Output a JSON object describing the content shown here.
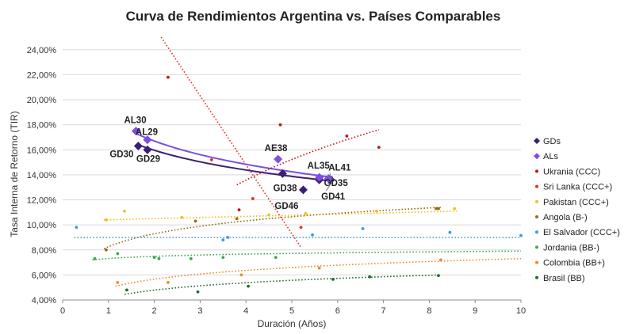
{
  "chart_data": {
    "type": "scatter",
    "title": "Curva de Rendimientos Argentina vs. Países Comparables",
    "xlabel": "Duración (Años)",
    "ylabel": "Tasa Interna de Retorno (TIR)",
    "xlim": [
      0,
      10
    ],
    "ylim": [
      4,
      25
    ],
    "x_ticks": [
      "0",
      "1",
      "2",
      "3",
      "4",
      "5",
      "6",
      "7",
      "8",
      "9",
      "10"
    ],
    "y_ticks": [
      "4,00%",
      "6,00%",
      "8,00%",
      "10,00%",
      "12,00%",
      "14,00%",
      "16,00%",
      "18,00%",
      "20,00%",
      "22,00%",
      "24,00%"
    ],
    "grid": "horizontal",
    "legend_position": "right",
    "series": [
      {
        "name": "GDs",
        "color": "#3b1f73",
        "marker": "diamond",
        "points": [
          {
            "label": "GD30",
            "x": 1.65,
            "y": 16.3
          },
          {
            "label": "GD29",
            "x": 1.85,
            "y": 16.0
          },
          {
            "label": "GD38",
            "x": 4.8,
            "y": 14.1
          },
          {
            "label": "GD46",
            "x": 5.25,
            "y": 12.8
          },
          {
            "label": "GD35",
            "x": 5.6,
            "y": 13.6
          },
          {
            "label": "GD41",
            "x": 5.85,
            "y": 13.6
          }
        ],
        "trend": {
          "type": "log",
          "x_from": 1.65,
          "x_to": 5.9,
          "y_from": 16.4,
          "y_to": 13.5
        }
      },
      {
        "name": "ALs",
        "color": "#7b4fe0",
        "marker": "diamond",
        "points": [
          {
            "label": "AL30",
            "x": 1.6,
            "y": 17.5
          },
          {
            "label": "AL29",
            "x": 1.85,
            "y": 16.8
          },
          {
            "label": "AE38",
            "x": 4.7,
            "y": 15.25
          },
          {
            "label": "AL35",
            "x": 5.6,
            "y": 13.8
          },
          {
            "label": "AL41",
            "x": 5.8,
            "y": 13.7
          }
        ],
        "trend": {
          "type": "log",
          "x_from": 1.6,
          "x_to": 5.9,
          "y_from": 17.3,
          "y_to": 13.8
        }
      },
      {
        "name": "Ukrania (CCC)",
        "color": "#c0141c",
        "points": [
          [
            2.3,
            21.8
          ],
          [
            3.85,
            11.2
          ],
          [
            4.75,
            18.0
          ],
          [
            6.2,
            17.1
          ],
          [
            6.9,
            16.2
          ]
        ],
        "trend": {
          "type": "log",
          "x_from": 3.8,
          "x_to": 6.9,
          "y_from": 13.2,
          "y_to": 17.6
        }
      },
      {
        "name": "Sri Lanka (CCC+)",
        "color": "#e53020",
        "points": [
          [
            3.25,
            15.2
          ],
          [
            4.15,
            12.1
          ],
          [
            5.2,
            9.8
          ]
        ],
        "trend": {
          "type": "linear",
          "x_from": 2.15,
          "x_to": 5.2,
          "y_from": 25.0,
          "y_to": 8.2
        }
      },
      {
        "name": "Pakistan (CCC+)",
        "color": "#f0c020",
        "points": [
          [
            0.95,
            10.4
          ],
          [
            1.35,
            11.1
          ],
          [
            2.6,
            10.6
          ],
          [
            4.5,
            10.8
          ],
          [
            5.3,
            10.9
          ],
          [
            6.85,
            11.1
          ],
          [
            8.55,
            11.3
          ]
        ],
        "trend": {
          "type": "linear",
          "x_from": 0.9,
          "x_to": 8.6,
          "y_from": 10.4,
          "y_to": 11.1
        }
      },
      {
        "name": "Angola (B-)",
        "color": "#9a6a10",
        "points": [
          [
            0.95,
            8.0
          ],
          [
            2.9,
            10.3
          ],
          [
            3.8,
            10.5
          ],
          [
            8.15,
            11.3
          ],
          [
            8.2,
            11.3
          ]
        ],
        "trend": {
          "type": "log",
          "x_from": 0.9,
          "x_to": 8.25,
          "y_from": 8.1,
          "y_to": 11.4
        }
      },
      {
        "name": "El Salvador (CCC+)",
        "color": "#3d9ad8",
        "points": [
          [
            0.3,
            9.8
          ],
          [
            3.5,
            8.8
          ],
          [
            3.6,
            9.0
          ],
          [
            5.45,
            9.2
          ],
          [
            6.55,
            9.7
          ],
          [
            8.45,
            9.4
          ],
          [
            10.0,
            9.15
          ]
        ],
        "trend": {
          "type": "linear",
          "x_from": 0.25,
          "x_to": 10.0,
          "y_from": 9.0,
          "y_to": 9.0
        }
      },
      {
        "name": "Jordania (BB-)",
        "color": "#3aaa50",
        "points": [
          [
            0.7,
            7.3
          ],
          [
            1.2,
            7.7
          ],
          [
            2.0,
            7.4
          ],
          [
            2.1,
            7.3
          ],
          [
            2.8,
            7.3
          ],
          [
            3.5,
            7.4
          ],
          [
            4.65,
            7.4
          ]
        ],
        "trend": {
          "type": "log",
          "x_from": 0.65,
          "x_to": 10.0,
          "y_from": 7.2,
          "y_to": 7.9
        }
      },
      {
        "name": "Colombia (BB+)",
        "color": "#f08a28",
        "points": [
          [
            1.2,
            5.4
          ],
          [
            2.3,
            5.4
          ],
          [
            3.9,
            6.0
          ],
          [
            5.6,
            6.55
          ],
          [
            8.25,
            7.2
          ]
        ],
        "trend": {
          "type": "log",
          "x_from": 1.15,
          "x_to": 10.0,
          "y_from": 5.1,
          "y_to": 7.3
        }
      },
      {
        "name": "Brasil (BB)",
        "color": "#1d6e2e",
        "points": [
          [
            1.4,
            4.8
          ],
          [
            2.95,
            4.65
          ],
          [
            4.05,
            5.1
          ],
          [
            5.9,
            5.65
          ],
          [
            6.7,
            5.85
          ],
          [
            8.2,
            5.95
          ]
        ],
        "trend": {
          "type": "log",
          "x_from": 1.35,
          "x_to": 8.25,
          "y_from": 4.45,
          "y_to": 6.0
        }
      }
    ],
    "annotations": [
      {
        "text": "AL30",
        "series": "ALs",
        "point": 0
      },
      {
        "text": "AL29",
        "series": "ALs",
        "point": 1
      },
      {
        "text": "AE38",
        "series": "ALs",
        "point": 2
      },
      {
        "text": "AL35",
        "series": "ALs",
        "point": 3
      },
      {
        "text": "AL41",
        "series": "ALs",
        "point": 4
      },
      {
        "text": "GD30",
        "series": "GDs",
        "point": 0
      },
      {
        "text": "GD29",
        "series": "GDs",
        "point": 1
      },
      {
        "text": "GD38",
        "series": "GDs",
        "point": 2
      },
      {
        "text": "GD46",
        "series": "GDs",
        "point": 3
      },
      {
        "text": "GD35",
        "series": "GDs",
        "point": 4
      },
      {
        "text": "GD41",
        "series": "GDs",
        "point": 5
      }
    ]
  }
}
